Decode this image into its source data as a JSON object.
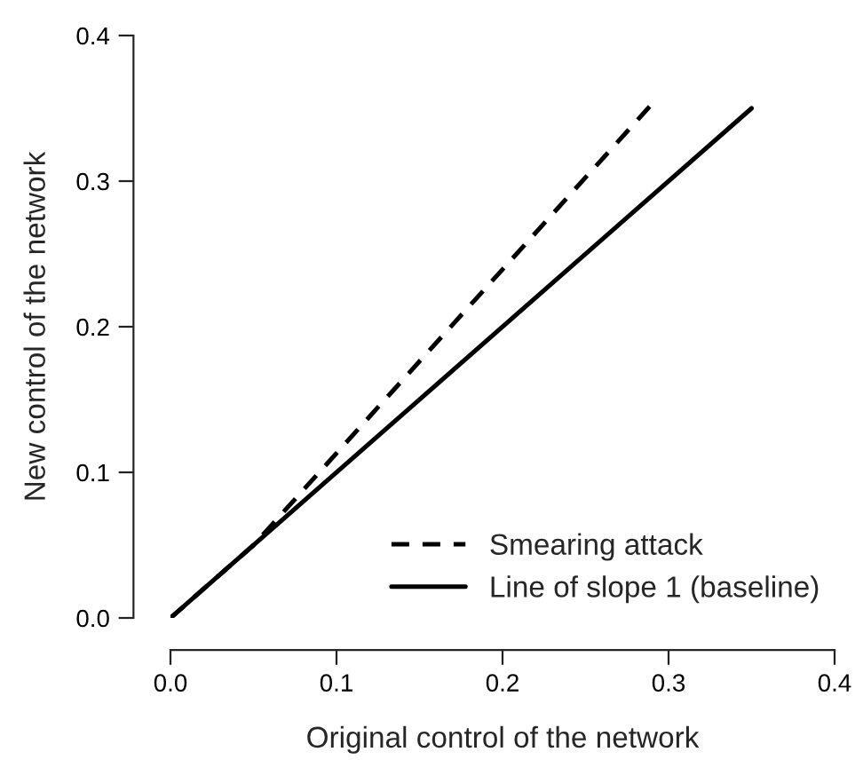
{
  "chart_data": {
    "type": "line",
    "xlabel": "Original control of the network",
    "ylabel": "New control of the network",
    "series": [
      {
        "name": "Smearing attack",
        "color": "#000000",
        "line_style": "dashed",
        "x": [
          0,
          0.05,
          0.29
        ],
        "values": [
          0,
          0.05,
          0.353
        ]
      },
      {
        "name": "Line of slope 1 (baseline)",
        "color": "#000000",
        "line_style": "solid",
        "x": [
          0,
          0.35
        ],
        "values": [
          0,
          0.35
        ]
      }
    ],
    "xlim": [
      0,
      0.4
    ],
    "ylim": [
      0,
      0.4
    ],
    "xticks": [
      {
        "value": 0,
        "label": "0.0"
      },
      0.1,
      0.2,
      0.3,
      0.4
    ],
    "yticks": [
      {
        "value": 0,
        "label": "0.0"
      },
      0.1,
      0.2,
      0.3,
      0.4
    ],
    "grid": false,
    "legend": "bottom right"
  }
}
